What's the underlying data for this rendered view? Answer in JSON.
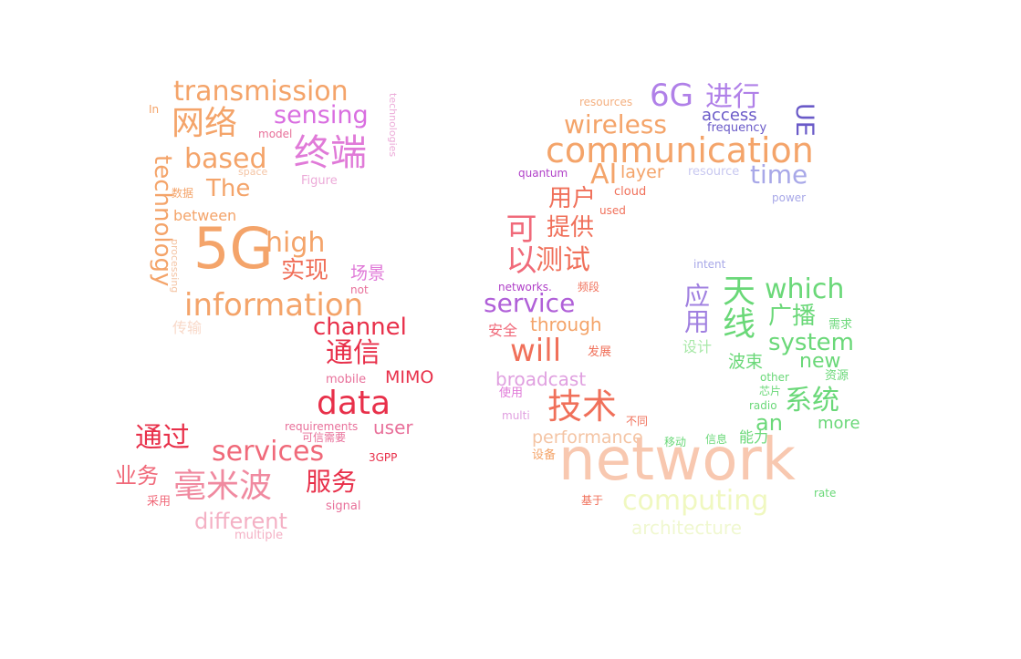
{
  "word_cloud": {
    "words": [
      {
        "text": "transmission",
        "color": "#f4a46a"
      },
      {
        "text": "网络",
        "color": "#f4a46a"
      },
      {
        "text": "sensing",
        "color": "#d96ee0"
      },
      {
        "text": "终端",
        "color": "#e07ad8"
      },
      {
        "text": "based",
        "color": "#f4a46a"
      },
      {
        "text": "The",
        "color": "#f4a46a"
      },
      {
        "text": "In",
        "color": "#f4a46a"
      },
      {
        "text": "model",
        "color": "#e8709a"
      },
      {
        "text": "space",
        "color": "#f4c4a4"
      },
      {
        "text": "Figure",
        "color": "#ecaad8"
      },
      {
        "text": "technologies",
        "color": "#ecaad8"
      },
      {
        "text": "数据",
        "color": "#f4a46a"
      },
      {
        "text": "technology",
        "color": "#f4a46a"
      },
      {
        "text": "between",
        "color": "#f4a46a"
      },
      {
        "text": "5G",
        "color": "#f4a46a"
      },
      {
        "text": "high",
        "color": "#f4a46a"
      },
      {
        "text": "实现",
        "color": "#f0705a"
      },
      {
        "text": "场景",
        "color": "#e07ad8"
      },
      {
        "text": "not",
        "color": "#e8709a"
      },
      {
        "text": "processing",
        "color": "#f4c4a4"
      },
      {
        "text": "information",
        "color": "#f4a46a"
      },
      {
        "text": "传输",
        "color": "#f8d8c8"
      },
      {
        "text": "channel",
        "color": "#e8304a"
      },
      {
        "text": "通信",
        "color": "#e8304a"
      },
      {
        "text": "mobile",
        "color": "#e8709a"
      },
      {
        "text": "MIMO",
        "color": "#e8304a"
      },
      {
        "text": "data",
        "color": "#e8304a"
      },
      {
        "text": "通过",
        "color": "#e8304a"
      },
      {
        "text": "requirements",
        "color": "#e8709a"
      },
      {
        "text": "user",
        "color": "#e8709a"
      },
      {
        "text": "可信需要",
        "color": "#e8709a"
      },
      {
        "text": "services",
        "color": "#f06a7a"
      },
      {
        "text": "3GPP",
        "color": "#e8304a"
      },
      {
        "text": "业务",
        "color": "#f06a7a"
      },
      {
        "text": "毫米波",
        "color": "#f08aa0"
      },
      {
        "text": "服务",
        "color": "#e8304a"
      },
      {
        "text": "采用",
        "color": "#f06a7a"
      },
      {
        "text": "signal",
        "color": "#e8709a"
      },
      {
        "text": "different",
        "color": "#f4b0c4"
      },
      {
        "text": "multiple",
        "color": "#f4b0c4"
      },
      {
        "text": "resources",
        "color": "#f4b080"
      },
      {
        "text": "6G",
        "color": "#b080e8"
      },
      {
        "text": "进行",
        "color": "#b080e8"
      },
      {
        "text": "wireless",
        "color": "#f4a46a"
      },
      {
        "text": "access",
        "color": "#6a5ac8"
      },
      {
        "text": "frequency",
        "color": "#6a5ac8"
      },
      {
        "text": "UE",
        "color": "#6a5ac8"
      },
      {
        "text": "communication",
        "color": "#f4a46a"
      },
      {
        "text": "AI",
        "color": "#f4a46a"
      },
      {
        "text": "layer",
        "color": "#f4a46a"
      },
      {
        "text": "resource",
        "color": "#c8c8f0"
      },
      {
        "text": "time",
        "color": "#a8a8e8"
      },
      {
        "text": "quantum",
        "color": "#b040c8"
      },
      {
        "text": "cloud",
        "color": "#f0705a"
      },
      {
        "text": "power",
        "color": "#a8a8e8"
      },
      {
        "text": "用户",
        "color": "#f0705a"
      },
      {
        "text": "used",
        "color": "#f0705a"
      },
      {
        "text": "可以",
        "color": "#f06a7a"
      },
      {
        "text": "提供",
        "color": "#f0705a"
      },
      {
        "text": "测试",
        "color": "#f0705a"
      },
      {
        "text": "intent",
        "color": "#a8a8e8"
      },
      {
        "text": "networks.",
        "color": "#b040c8"
      },
      {
        "text": "频段",
        "color": "#f0705a"
      },
      {
        "text": "service",
        "color": "#b060d8"
      },
      {
        "text": "应用",
        "color": "#a080e0"
      },
      {
        "text": "天线",
        "color": "#6ad878"
      },
      {
        "text": "which",
        "color": "#6ad878"
      },
      {
        "text": "安全",
        "color": "#f06a7a"
      },
      {
        "text": "through",
        "color": "#f4a46a"
      },
      {
        "text": "广播",
        "color": "#6ad878"
      },
      {
        "text": "需求",
        "color": "#6ad878"
      },
      {
        "text": "will",
        "color": "#f0705a"
      },
      {
        "text": "发展",
        "color": "#f0705a"
      },
      {
        "text": "设计",
        "color": "#a8e8a8"
      },
      {
        "text": "system",
        "color": "#6ad878"
      },
      {
        "text": "波束",
        "color": "#6ad878"
      },
      {
        "text": "new",
        "color": "#6ad878"
      },
      {
        "text": "broadcast",
        "color": "#e0a0e0"
      },
      {
        "text": "other",
        "color": "#6ad878"
      },
      {
        "text": "资源",
        "color": "#6ad878"
      },
      {
        "text": "芯片",
        "color": "#6ad878"
      },
      {
        "text": "使用",
        "color": "#e07ad8"
      },
      {
        "text": "技术",
        "color": "#f0705a"
      },
      {
        "text": "radio",
        "color": "#6ad878"
      },
      {
        "text": "系统",
        "color": "#6ad878"
      },
      {
        "text": "multi",
        "color": "#e0a0e0"
      },
      {
        "text": "不同",
        "color": "#f0705a"
      },
      {
        "text": "an",
        "color": "#6ad878"
      },
      {
        "text": "more",
        "color": "#6ad878"
      },
      {
        "text": "performance",
        "color": "#f4c4a4"
      },
      {
        "text": "移动",
        "color": "#6ad878"
      },
      {
        "text": "信息",
        "color": "#6ad878"
      },
      {
        "text": "能力",
        "color": "#6ad878"
      },
      {
        "text": "设备",
        "color": "#f4a46a"
      },
      {
        "text": "network",
        "color": "#f8c8b0"
      },
      {
        "text": "computing",
        "color": "#f0f8c0"
      },
      {
        "text": "基于",
        "color": "#f0705a"
      },
      {
        "text": "rate",
        "color": "#6ad878"
      },
      {
        "text": "architecture",
        "color": "#f0f8d0"
      }
    ]
  }
}
